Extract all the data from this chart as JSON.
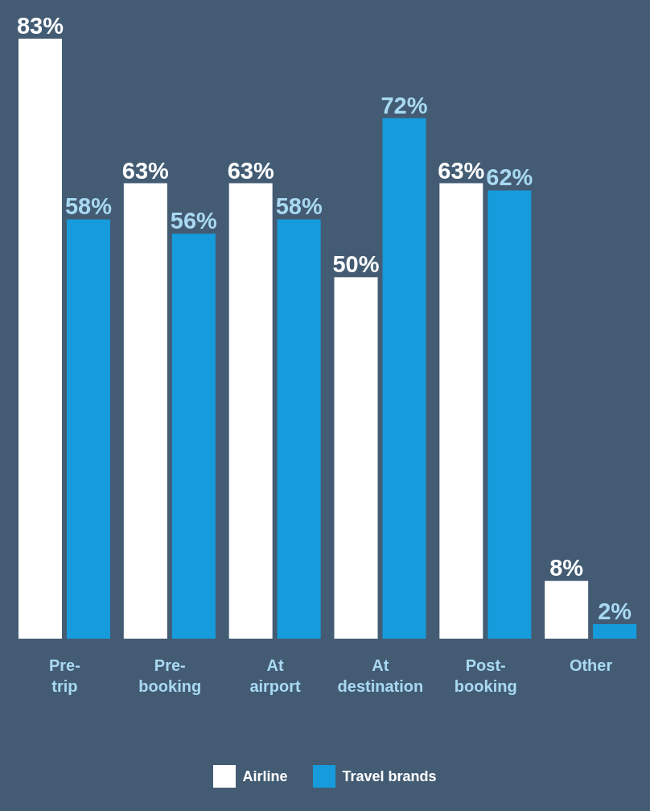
{
  "chart_data": {
    "type": "bar",
    "categories": [
      "Pre-trip",
      "Pre-booking",
      "At airport",
      "At destination",
      "Post-booking",
      "Other"
    ],
    "series": [
      {
        "name": "Airline",
        "color": "#ffffff",
        "values": [
          83,
          63,
          63,
          50,
          63,
          8
        ],
        "value_labels": [
          "83%",
          "63%",
          "63%",
          "50%",
          "63%",
          "8%"
        ]
      },
      {
        "name": "Travel brands",
        "color": "#169cdc",
        "values": [
          58,
          56,
          58,
          72,
          62,
          2
        ],
        "value_labels": [
          "58%",
          "56%",
          "58%",
          "72%",
          "62%",
          "2%"
        ]
      }
    ],
    "legend": "bottom",
    "grid": false
  }
}
